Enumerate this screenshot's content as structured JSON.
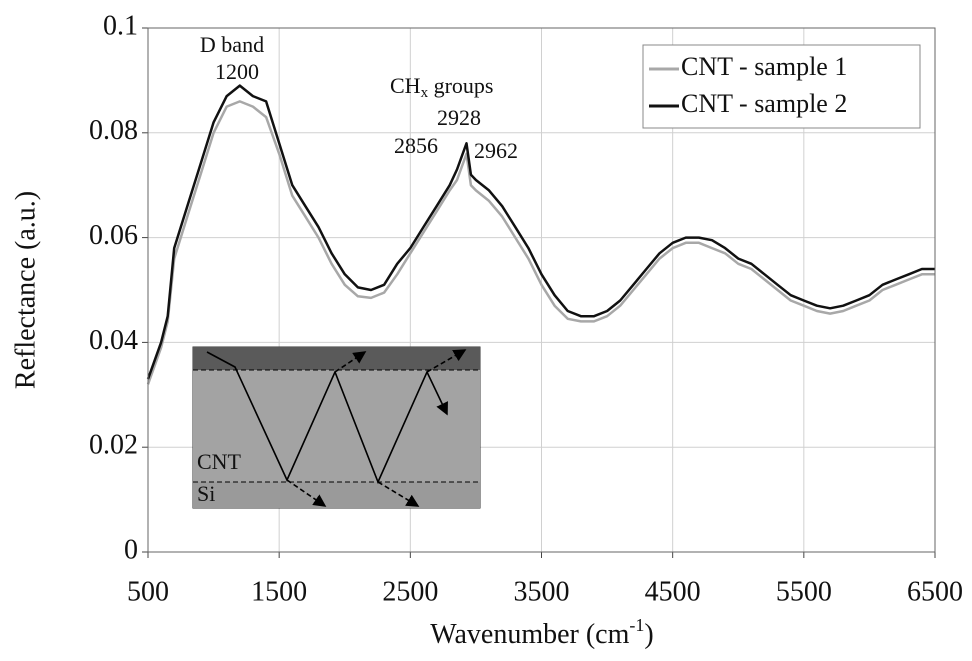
{
  "chart_data": {
    "type": "line",
    "xlabel": {
      "text": "Wavenumber (cm",
      "sup": "-1",
      "tail": ")"
    },
    "ylabel": "Reflectance (a.u.)",
    "x": [
      500,
      600,
      650,
      700,
      800,
      900,
      1000,
      1100,
      1200,
      1300,
      1400,
      1500,
      1600,
      1700,
      1800,
      1900,
      2000,
      2100,
      2200,
      2300,
      2400,
      2500,
      2600,
      2700,
      2800,
      2856,
      2928,
      2962,
      3000,
      3100,
      3200,
      3300,
      3400,
      3500,
      3600,
      3700,
      3800,
      3900,
      4000,
      4100,
      4200,
      4300,
      4400,
      4500,
      4600,
      4700,
      4800,
      4900,
      5000,
      5100,
      5200,
      5300,
      5400,
      5500,
      5600,
      5700,
      5800,
      5900,
      6000,
      6100,
      6200,
      6300,
      6400,
      6500
    ],
    "series": [
      {
        "name": "CNT - sample 1",
        "color": "#a8a8a8",
        "values": [
          0.032,
          0.039,
          0.044,
          0.056,
          0.064,
          0.072,
          0.08,
          0.085,
          0.086,
          0.085,
          0.083,
          0.076,
          0.068,
          0.064,
          0.06,
          0.055,
          0.051,
          0.0488,
          0.0485,
          0.0495,
          0.053,
          0.057,
          0.061,
          0.065,
          0.069,
          0.071,
          0.076,
          0.07,
          0.069,
          0.067,
          0.064,
          0.06,
          0.056,
          0.051,
          0.047,
          0.0445,
          0.044,
          0.044,
          0.045,
          0.047,
          0.05,
          0.053,
          0.056,
          0.058,
          0.059,
          0.059,
          0.058,
          0.057,
          0.055,
          0.054,
          0.052,
          0.05,
          0.048,
          0.047,
          0.046,
          0.0455,
          0.046,
          0.047,
          0.048,
          0.05,
          0.051,
          0.052,
          0.053,
          0.053
        ]
      },
      {
        "name": "CNT - sample 2",
        "color": "#111111",
        "values": [
          0.033,
          0.04,
          0.045,
          0.058,
          0.066,
          0.074,
          0.082,
          0.087,
          0.089,
          0.087,
          0.086,
          0.078,
          0.07,
          0.066,
          0.062,
          0.057,
          0.053,
          0.0505,
          0.05,
          0.051,
          0.055,
          0.058,
          0.062,
          0.066,
          0.07,
          0.073,
          0.078,
          0.072,
          0.071,
          0.069,
          0.066,
          0.062,
          0.058,
          0.053,
          0.049,
          0.046,
          0.045,
          0.045,
          0.046,
          0.048,
          0.051,
          0.054,
          0.057,
          0.059,
          0.06,
          0.06,
          0.0595,
          0.058,
          0.056,
          0.055,
          0.053,
          0.051,
          0.049,
          0.048,
          0.047,
          0.0465,
          0.047,
          0.048,
          0.049,
          0.051,
          0.052,
          0.053,
          0.054,
          0.054
        ]
      }
    ],
    "xlim": [
      500,
      6500
    ],
    "xticks": [
      500,
      1500,
      2500,
      3500,
      4500,
      5500,
      6500
    ],
    "ylim": [
      0,
      0.1
    ],
    "yticks": [
      0,
      0.02,
      0.04,
      0.06,
      0.08,
      0.1
    ],
    "grid": true,
    "legend": "top-right",
    "annotations": {
      "d_band": "D band",
      "d_pos": "1200",
      "chx": "CH",
      "chx_sub": "x",
      "chx_tail": " groups",
      "p1": "2856",
      "p2": "2928",
      "p3": "2962"
    },
    "inset": {
      "cnt": "CNT",
      "si": "Si"
    }
  }
}
